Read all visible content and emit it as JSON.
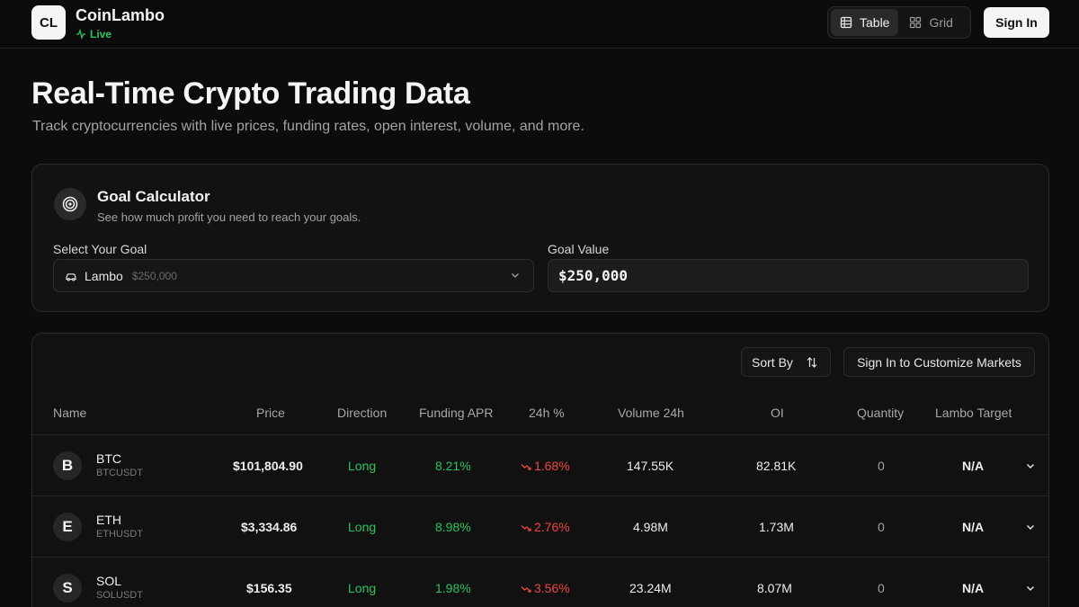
{
  "header": {
    "logo": "CL",
    "brand": "CoinLambo",
    "status": "Live",
    "view_toggle": [
      "Table",
      "Grid"
    ],
    "active_view": "Table",
    "sign_in": "Sign In"
  },
  "hero": {
    "title": "Real-Time Crypto Trading Data",
    "subtitle": "Track cryptocurrencies with live prices, funding rates, open interest, volume, and more."
  },
  "goal": {
    "title": "Goal Calculator",
    "subtitle": "See how much profit you need to reach your goals.",
    "select_label": "Select Your Goal",
    "selected_name": "Lambo",
    "selected_price": "$250,000",
    "value_label": "Goal Value",
    "value": "$250,000"
  },
  "table": {
    "sort_label": "Sort By",
    "customize_label": "Sign In to Customize Markets",
    "columns": [
      "Name",
      "Price",
      "Direction",
      "Funding APR",
      "24h %",
      "Volume 24h",
      "OI",
      "Quantity",
      "Lambo Target"
    ],
    "rows": [
      {
        "avatar": "B",
        "symbol": "BTC",
        "pair": "BTCUSDT",
        "price": "$101,804.90",
        "direction": "Long",
        "funding": "8.21%",
        "change": "1.68%",
        "volume": "147.55K",
        "oi": "82.81K",
        "quantity": "0",
        "target": "N/A"
      },
      {
        "avatar": "E",
        "symbol": "ETH",
        "pair": "ETHUSDT",
        "price": "$3,334.86",
        "direction": "Long",
        "funding": "8.98%",
        "change": "2.76%",
        "volume": "4.98M",
        "oi": "1.73M",
        "quantity": "0",
        "target": "N/A"
      },
      {
        "avatar": "S",
        "symbol": "SOL",
        "pair": "SOLUSDT",
        "price": "$156.35",
        "direction": "Long",
        "funding": "1.98%",
        "change": "3.56%",
        "volume": "23.24M",
        "oi": "8.07M",
        "quantity": "0",
        "target": "N/A"
      }
    ]
  },
  "colors": {
    "positive": "#22c55e",
    "negative": "#ef4444",
    "background": "#0c0c0c"
  }
}
